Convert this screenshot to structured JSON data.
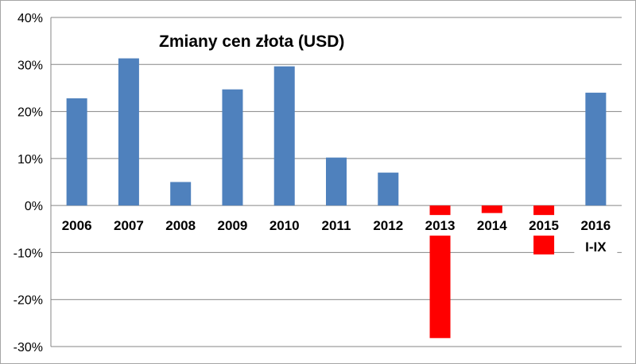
{
  "chart_data": {
    "type": "bar",
    "title": "Zmiany cen złota (USD)",
    "xlabel": "",
    "ylabel": "",
    "categories": [
      "2006",
      "2007",
      "2008",
      "2009",
      "2010",
      "2011",
      "2012",
      "2013",
      "2014",
      "2015",
      "2016"
    ],
    "category_sublabels": {
      "2016": "I-IX"
    },
    "values": [
      22.8,
      31.3,
      5.0,
      24.7,
      29.6,
      10.2,
      7.0,
      -28.2,
      -1.6,
      -10.4,
      24.0
    ],
    "ylim": [
      -30,
      40
    ],
    "yticks": [
      -30,
      -20,
      -10,
      0,
      10,
      20,
      30,
      40
    ],
    "ytick_labels": [
      "-30%",
      "-20%",
      "-10%",
      "0%",
      "10%",
      "20%",
      "30%",
      "40%"
    ],
    "grid": true,
    "legend": "none",
    "colors": {
      "positive": "#4f81bd",
      "negative": "#ff0000",
      "grid": "#868686"
    }
  }
}
